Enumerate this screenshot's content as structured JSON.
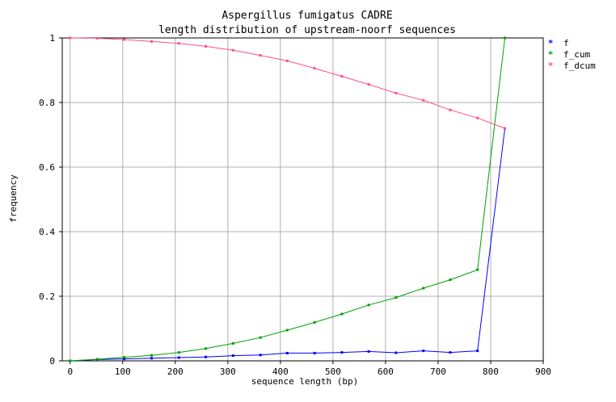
{
  "chart_data": {
    "type": "line",
    "title": "Aspergillus fumigatus CADRE",
    "subtitle": "length distribution of upstream-noorf sequences",
    "xlabel": "sequence length (bp)",
    "ylabel": "frequency",
    "xlim": [
      -15,
      900
    ],
    "ylim": [
      0,
      1
    ],
    "xticks": [
      0,
      100,
      200,
      300,
      400,
      500,
      600,
      700,
      800,
      900
    ],
    "yticks": [
      0,
      0.2,
      0.4,
      0.6,
      0.8,
      1
    ],
    "grid": true,
    "legend_position": "top-right",
    "x": [
      0,
      52,
      103,
      155,
      207,
      258,
      310,
      362,
      413,
      465,
      517,
      568,
      620,
      672,
      723,
      775,
      827
    ],
    "series": [
      {
        "name": "f",
        "color": "#0000ff",
        "values": [
          0.0,
          0.004,
          0.006,
          0.008,
          0.01,
          0.012,
          0.016,
          0.018,
          0.024,
          0.024,
          0.026,
          0.029,
          0.025,
          0.031,
          0.026,
          0.031,
          0.72
        ]
      },
      {
        "name": "f_cum",
        "color": "#00a000",
        "values": [
          0.0,
          0.005,
          0.011,
          0.017,
          0.026,
          0.038,
          0.054,
          0.072,
          0.095,
          0.119,
          0.145,
          0.173,
          0.196,
          0.225,
          0.251,
          0.282,
          1.0
        ]
      },
      {
        "name": "f_dcum",
        "color": "#ff5080",
        "values": [
          1.0,
          0.999,
          0.995,
          0.989,
          0.983,
          0.974,
          0.962,
          0.946,
          0.929,
          0.906,
          0.881,
          0.856,
          0.829,
          0.807,
          0.777,
          0.752,
          0.72
        ]
      }
    ]
  }
}
